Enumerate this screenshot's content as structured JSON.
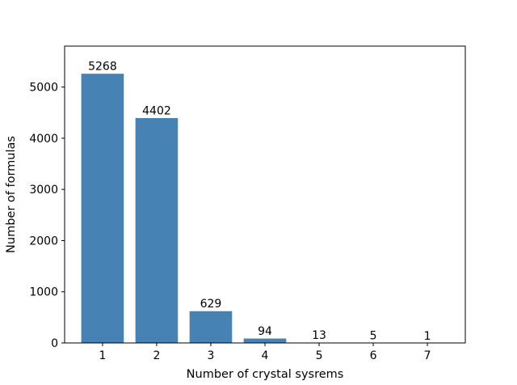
{
  "chart_data": {
    "type": "bar",
    "categories": [
      "1",
      "2",
      "3",
      "4",
      "5",
      "6",
      "7"
    ],
    "values": [
      5268,
      4402,
      629,
      94,
      13,
      5,
      1
    ],
    "data_labels": [
      "5268",
      "4402",
      "629",
      "94",
      "13",
      "5",
      "1"
    ],
    "title": "",
    "xlabel": "Number of crystal sysrems",
    "ylabel": "Number of formulas",
    "xlim": [
      0.3,
      7.7
    ],
    "ylim": [
      0,
      5800
    ],
    "yticks": [
      0,
      1000,
      2000,
      3000,
      4000,
      5000
    ],
    "grid": false,
    "bar_color": "#4682b4",
    "bar_edge_color": "#ffffff"
  }
}
